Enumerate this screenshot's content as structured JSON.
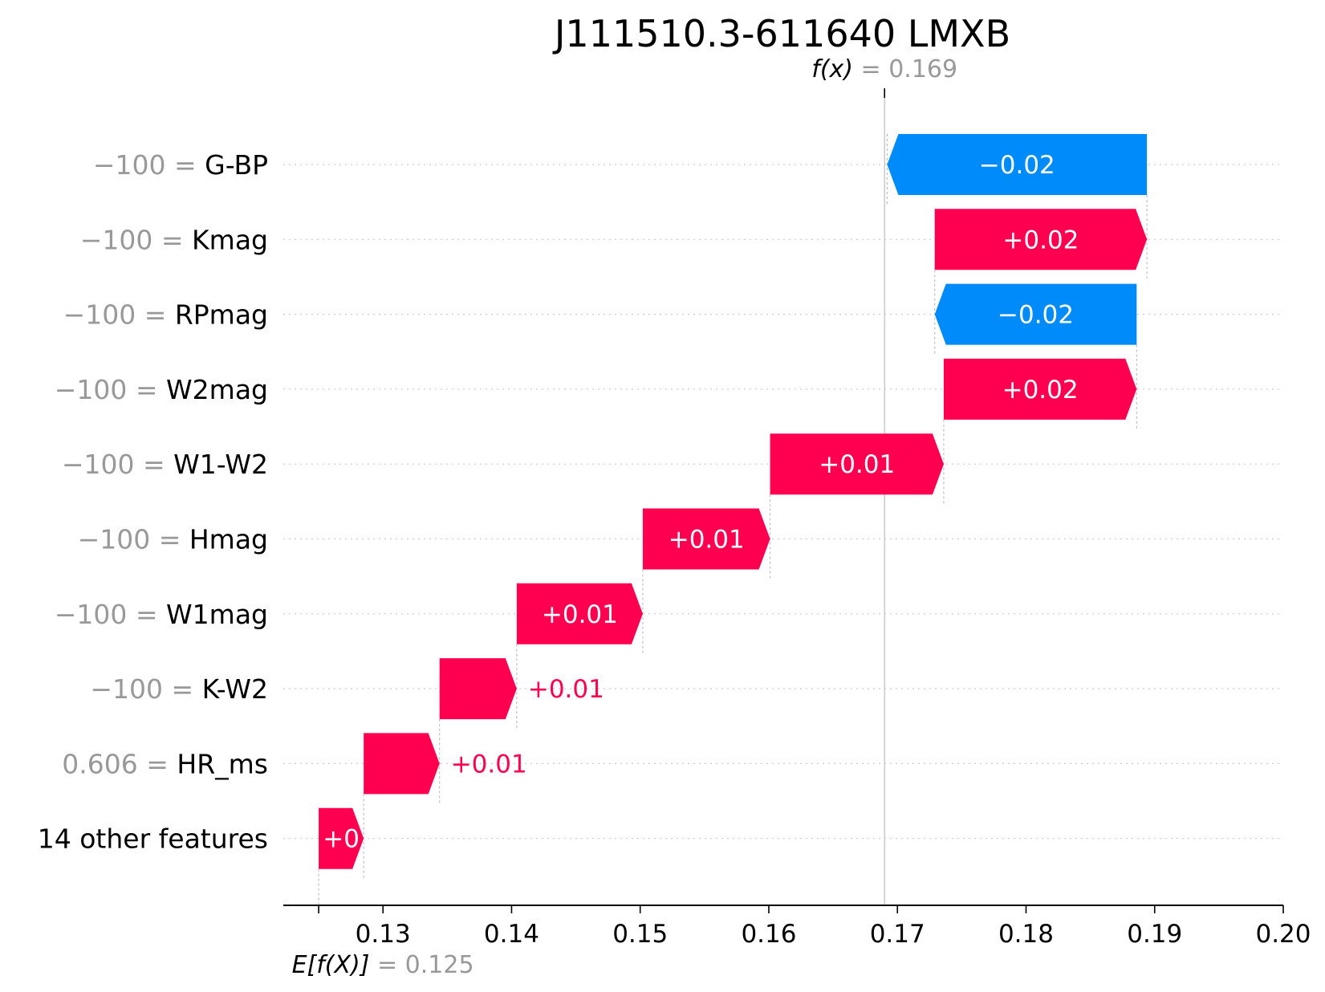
{
  "chart_data": {
    "type": "waterfall",
    "title": "J111510.3-611640 LMXB",
    "base_value": 0.125,
    "base_value_label": {
      "name": "E[f(X)]",
      "eq": " = ",
      "value": "0.125"
    },
    "output_value": 0.169,
    "output_value_label": {
      "name": "f(x)",
      "eq": " = ",
      "value": "0.169"
    },
    "xlim": [
      0.1225,
      0.2
    ],
    "xticks": [
      0.13,
      0.14,
      0.15,
      0.16,
      0.17,
      0.18,
      0.19,
      0.2
    ],
    "xtick_labels": [
      "0.13",
      "0.14",
      "0.15",
      "0.16",
      "0.17",
      "0.18",
      "0.19",
      "0.20"
    ],
    "features": [
      {
        "value": "−100",
        "eq": " = ",
        "name": "G-BP",
        "start": 0.1894,
        "end": 0.1692,
        "label": "−0.02",
        "sign": "neg",
        "label_inside": true
      },
      {
        "value": "−100",
        "eq": " = ",
        "name": "Kmag",
        "start": 0.1729,
        "end": 0.1894,
        "label": "+0.02",
        "sign": "pos",
        "label_inside": true
      },
      {
        "value": "−100",
        "eq": " = ",
        "name": "RPmag",
        "start": 0.1886,
        "end": 0.1729,
        "label": "−0.02",
        "sign": "neg",
        "label_inside": true
      },
      {
        "value": "−100",
        "eq": " = ",
        "name": "W2mag",
        "start": 0.1736,
        "end": 0.1886,
        "label": "+0.02",
        "sign": "pos",
        "label_inside": true
      },
      {
        "value": "−100",
        "eq": " = ",
        "name": "W1-W2",
        "start": 0.1601,
        "end": 0.1736,
        "label": "+0.01",
        "sign": "pos",
        "label_inside": true
      },
      {
        "value": "−100",
        "eq": " = ",
        "name": "Hmag",
        "start": 0.1502,
        "end": 0.1601,
        "label": "+0.01",
        "sign": "pos",
        "label_inside": true
      },
      {
        "value": "−100",
        "eq": " = ",
        "name": "W1mag",
        "start": 0.1404,
        "end": 0.1502,
        "label": "+0.01",
        "sign": "pos",
        "label_inside": true
      },
      {
        "value": "−100",
        "eq": " = ",
        "name": "K-W2",
        "start": 0.1344,
        "end": 0.1404,
        "label": "+0.01",
        "sign": "pos",
        "label_inside": false
      },
      {
        "value": "0.606",
        "eq": " = ",
        "name": "HR_ms",
        "start": 0.1285,
        "end": 0.1344,
        "label": "+0.01",
        "sign": "pos",
        "label_inside": false
      },
      {
        "value": "",
        "eq": "",
        "name": "14 other features",
        "start": 0.125,
        "end": 0.1285,
        "label": "+0",
        "sign": "pos",
        "label_inside": true
      }
    ],
    "colors": {
      "positive": "#ff0051",
      "negative": "#008bfb",
      "grid": "#cccccc",
      "guide": "#bbbbbb"
    }
  }
}
